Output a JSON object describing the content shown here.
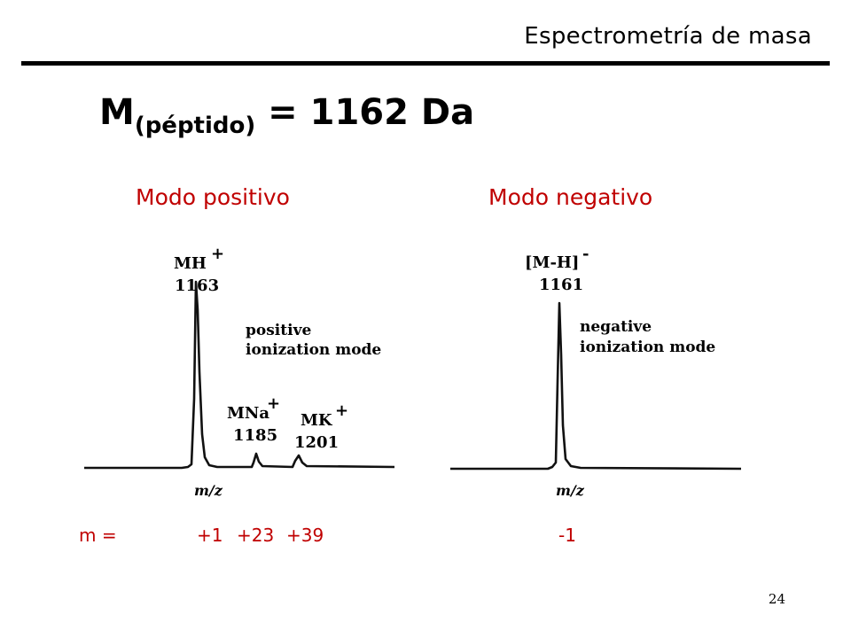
{
  "header": {
    "title": "Espectrometría de masa"
  },
  "formula": {
    "symbol": "M",
    "subscript": "(péptido)",
    "rest": " = 1162 Da"
  },
  "modes": {
    "positive": "Modo positivo",
    "negative": "Modo negativo"
  },
  "positive_spectrum": {
    "peaks": [
      {
        "ion": "MH",
        "charge": "+",
        "mz": "1163"
      },
      {
        "ion": "MNa",
        "charge": "+",
        "mz": "1185"
      },
      {
        "ion": "MK",
        "charge": "+",
        "mz": "1201"
      }
    ],
    "mode_text": [
      "positive",
      "ionization mode"
    ],
    "axis_label": "m/z"
  },
  "negative_spectrum": {
    "peaks": [
      {
        "ion": "[M-H]",
        "charge": "-",
        "mz": "1161"
      }
    ],
    "mode_text": [
      "negative",
      "ionization mode"
    ],
    "axis_label": "m/z"
  },
  "mass_shifts": {
    "label": "m =",
    "positive": [
      "+1",
      "+23",
      "+39"
    ],
    "negative": [
      "-1"
    ]
  },
  "page_number": "24"
}
